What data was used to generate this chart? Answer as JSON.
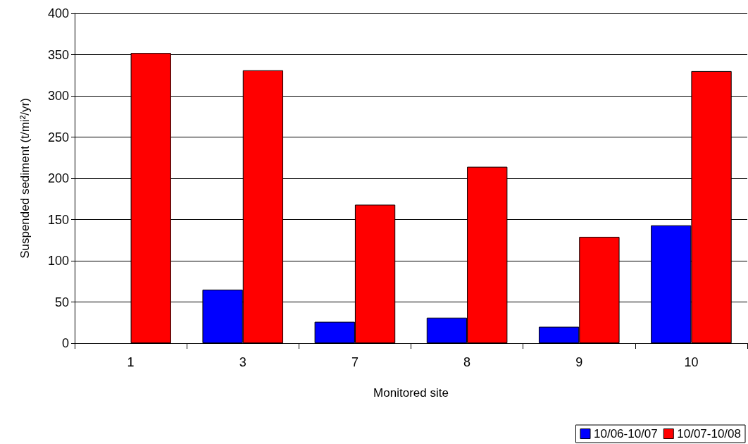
{
  "chart_data": {
    "type": "bar",
    "xlabel": "Monitored site",
    "ylabel": "Suspended sediment (t/mi²/yr)",
    "categories": [
      "1",
      "3",
      "7",
      "8",
      "9",
      "10"
    ],
    "series": [
      {
        "name": "10/06-10/07",
        "color": "#0000ff",
        "values": [
          null,
          65,
          26,
          31,
          20,
          143
        ]
      },
      {
        "name": "10/07-10/08",
        "color": "#ff0000",
        "values": [
          352,
          331,
          168,
          214,
          129,
          330
        ]
      }
    ],
    "ylim": [
      0,
      400
    ],
    "yticks": [
      0,
      50,
      100,
      150,
      200,
      250,
      300,
      350,
      400
    ],
    "grid": "y",
    "legend": "bottom right"
  }
}
